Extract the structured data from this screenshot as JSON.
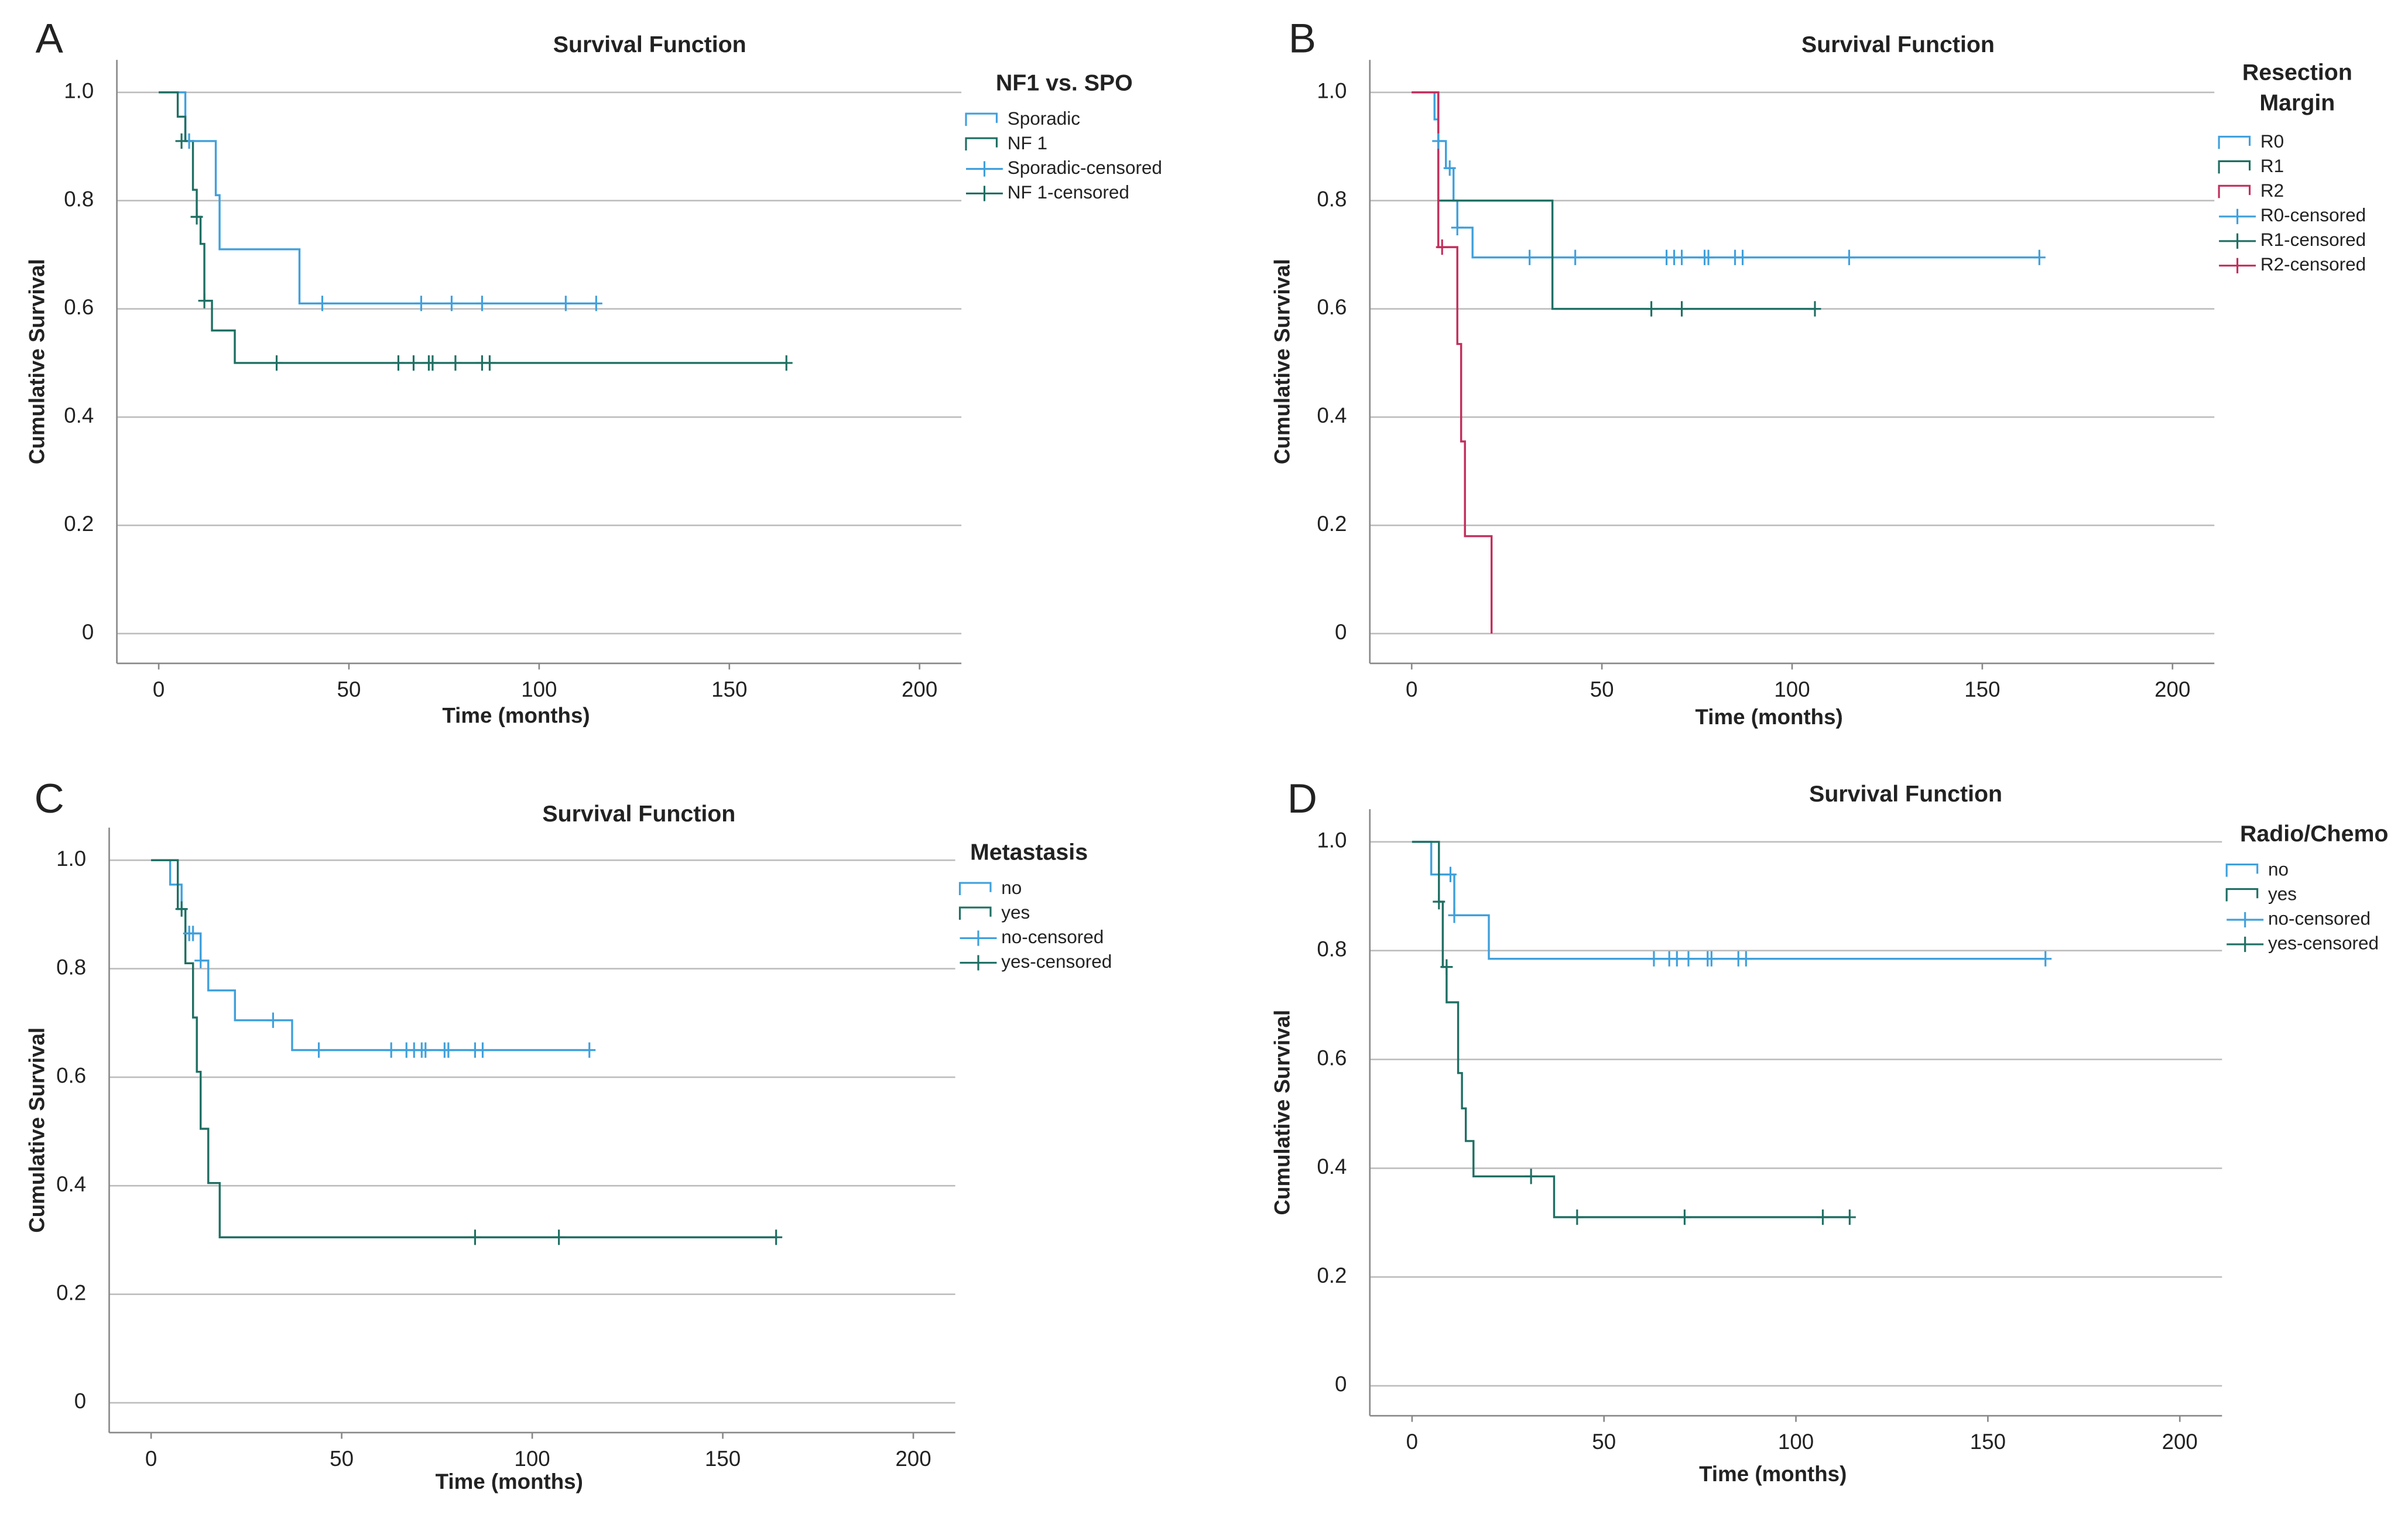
{
  "chart_data": [
    {
      "type": "step",
      "label": "A",
      "title": "Survival Function",
      "x_label": "Time (months)",
      "y_label": "Cumulative Survival",
      "legend_title": "NF1 vs. SPO",
      "xlim": [
        -11,
        211
      ],
      "ylim": [
        -0.055,
        1.06
      ],
      "xticks": [
        0,
        50,
        100,
        150,
        200
      ],
      "yticks": [
        0,
        0.2,
        0.4,
        0.6,
        0.8,
        {
          "value": 1,
          "label": "1.0"
        }
      ],
      "grid": true,
      "series": [
        {
          "name": "Sporadic",
          "color": "#3fa0dc",
          "x": [
            0,
            7,
            15,
            16,
            37,
            115
          ],
          "values": [
            1,
            0.91,
            0.81,
            0.71,
            0.61,
            0.61
          ]
        },
        {
          "name": "NF 1",
          "color": "#1f6f63",
          "x": [
            0,
            5,
            7,
            9,
            10,
            11,
            12,
            14,
            20,
            165
          ],
          "values": [
            1,
            0.955,
            0.91,
            0.82,
            0.77,
            0.72,
            0.615,
            0.56,
            0.5,
            0.5
          ]
        },
        {
          "name": "Sporadic-censored",
          "color": "#3fa0dc",
          "marker": "plus",
          "x": [
            8,
            43,
            69,
            77,
            85,
            107,
            115
          ],
          "values": [
            0.91,
            0.61,
            0.61,
            0.61,
            0.61,
            0.61,
            0.61
          ]
        },
        {
          "name": "NF 1-censored",
          "color": "#1f6f63",
          "marker": "plus",
          "x": [
            6,
            10,
            12,
            31,
            63,
            67,
            71,
            72,
            78,
            85,
            87,
            165
          ],
          "values": [
            0.91,
            0.77,
            0.615,
            0.5,
            0.5,
            0.5,
            0.5,
            0.5,
            0.5,
            0.5,
            0.5,
            0.5
          ]
        }
      ]
    },
    {
      "type": "step",
      "label": "B",
      "title": "Survival Function",
      "x_label": "Time (months)",
      "y_label": "Cumulative Survival",
      "legend_title": [
        "Resection",
        "Margin"
      ],
      "xlim": [
        -11,
        211
      ],
      "ylim": [
        -0.055,
        1.06
      ],
      "xticks": [
        0,
        50,
        100,
        150,
        200
      ],
      "yticks": [
        0,
        0.2,
        0.4,
        0.6,
        0.8,
        {
          "value": 1,
          "label": "1.0"
        }
      ],
      "grid": true,
      "series": [
        {
          "name": "R0",
          "color": "#3fa0dc",
          "x": [
            0,
            6,
            7,
            9,
            11,
            12,
            16,
            165
          ],
          "values": [
            1,
            0.95,
            0.91,
            0.86,
            0.8,
            0.75,
            0.695,
            0.695
          ]
        },
        {
          "name": "R1",
          "color": "#1f6f63",
          "x": [
            0,
            7,
            37,
            106
          ],
          "values": [
            1,
            0.8,
            0.6,
            0.6
          ]
        },
        {
          "name": "R2",
          "color": "#c22e5c",
          "x": [
            0,
            7,
            11,
            12,
            13,
            14,
            21
          ],
          "values": [
            1,
            0.714,
            0.714,
            0.535,
            0.355,
            0.18,
            0
          ]
        },
        {
          "name": "R0-censored",
          "color": "#3fa0dc",
          "marker": "plus",
          "x": [
            7,
            10,
            12,
            31,
            43,
            67,
            69,
            71,
            77,
            78,
            85,
            87,
            115,
            165
          ],
          "values": [
            0.91,
            0.86,
            0.75,
            0.695,
            0.695,
            0.695,
            0.695,
            0.695,
            0.695,
            0.695,
            0.695,
            0.695,
            0.695,
            0.695
          ]
        },
        {
          "name": "R1-censored",
          "color": "#1f6f63",
          "marker": "plus",
          "x": [
            63,
            71,
            106
          ],
          "values": [
            0.6,
            0.6,
            0.6
          ]
        },
        {
          "name": "R2-censored",
          "color": "#c22e5c",
          "marker": "plus",
          "x": [
            8
          ],
          "values": [
            0.714
          ]
        }
      ]
    },
    {
      "type": "step",
      "label": "C",
      "title": "Survival Function",
      "x_label": "Time (months)",
      "y_label": "Cumulative Survival",
      "legend_title": "Metastasis",
      "xlim": [
        -11,
        211
      ],
      "ylim": [
        -0.055,
        1.06
      ],
      "xticks": [
        0,
        50,
        100,
        150,
        200
      ],
      "yticks": [
        0,
        0.2,
        0.4,
        0.6,
        0.8,
        {
          "value": 1,
          "label": "1.0"
        }
      ],
      "grid": true,
      "series": [
        {
          "name": "no",
          "color": "#3fa0dc",
          "x": [
            0,
            5,
            8,
            9,
            13,
            15,
            22,
            37,
            115
          ],
          "values": [
            1,
            0.955,
            0.91,
            0.865,
            0.815,
            0.76,
            0.705,
            0.65,
            0.65
          ]
        },
        {
          "name": "yes",
          "color": "#1f6f63",
          "x": [
            0,
            7,
            9,
            11,
            12,
            13,
            15,
            18,
            164
          ],
          "values": [
            1,
            0.91,
            0.81,
            0.71,
            0.61,
            0.505,
            0.405,
            0.305,
            0.305
          ]
        },
        {
          "name": "no-censored",
          "color": "#3fa0dc",
          "marker": "plus",
          "x": [
            10,
            11,
            13,
            32,
            44,
            63,
            67,
            69,
            71,
            72,
            77,
            78,
            85,
            87,
            115
          ],
          "values": [
            0.865,
            0.865,
            0.815,
            0.705,
            0.65,
            0.65,
            0.65,
            0.65,
            0.65,
            0.65,
            0.65,
            0.65,
            0.65,
            0.65,
            0.65
          ]
        },
        {
          "name": "yes-censored",
          "color": "#1f6f63",
          "marker": "plus",
          "x": [
            8,
            85,
            107,
            164
          ],
          "values": [
            0.91,
            0.305,
            0.305,
            0.305
          ]
        }
      ]
    },
    {
      "type": "step",
      "label": "D",
      "title": "Survival Function",
      "x_label": "Time (months)",
      "y_label": "Cumulative Survival",
      "legend_title": "Radio/Chemo",
      "xlim": [
        -11,
        211
      ],
      "ylim": [
        -0.055,
        1.06
      ],
      "xticks": [
        0,
        50,
        100,
        150,
        200
      ],
      "yticks": [
        0,
        0.2,
        0.4,
        0.6,
        0.8,
        {
          "value": 1,
          "label": "1.0"
        }
      ],
      "grid": true,
      "series": [
        {
          "name": "no",
          "color": "#3fa0dc",
          "x": [
            0,
            5,
            11,
            20,
            165
          ],
          "values": [
            1,
            0.94,
            0.865,
            0.785,
            0.785
          ]
        },
        {
          "name": "yes",
          "color": "#1f6f63",
          "x": [
            0,
            7,
            8,
            9,
            12,
            13,
            14,
            16,
            37,
            114
          ],
          "values": [
            1,
            0.89,
            0.77,
            0.705,
            0.575,
            0.51,
            0.45,
            0.385,
            0.31,
            0.31
          ]
        },
        {
          "name": "no-censored",
          "color": "#3fa0dc",
          "marker": "plus",
          "x": [
            10,
            11,
            63,
            67,
            69,
            72,
            77,
            78,
            85,
            87,
            165
          ],
          "values": [
            0.94,
            0.865,
            0.785,
            0.785,
            0.785,
            0.785,
            0.785,
            0.785,
            0.785,
            0.785,
            0.785
          ]
        },
        {
          "name": "yes-censored",
          "color": "#1f6f63",
          "marker": "plus",
          "x": [
            7,
            9,
            31,
            43,
            71,
            107,
            114
          ],
          "values": [
            0.89,
            0.77,
            0.385,
            0.31,
            0.31,
            0.31,
            0.31
          ]
        }
      ]
    }
  ]
}
